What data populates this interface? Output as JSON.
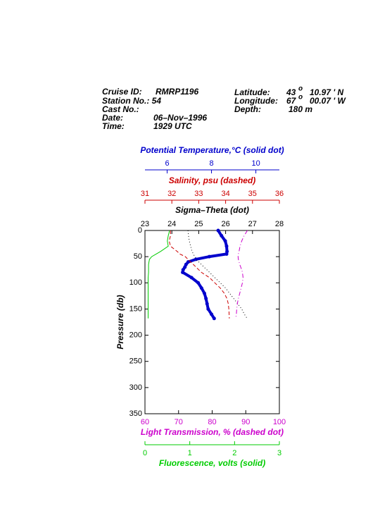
{
  "header": {
    "cruise_label": "Cruise ID:",
    "cruise": "RMRP1196",
    "station": "Station No.: 54",
    "cast": "Cast No.:",
    "date_label": "Date:",
    "date": "06–Nov–1996",
    "time_label": "Time:",
    "time": "1929 UTC",
    "lat_label": "Latitude:",
    "lat_deg": "43",
    "lat_min": "10.97 ' N",
    "lon_label": "Longitude:",
    "lon_deg": "67",
    "lon_min": "00.07 ' W",
    "degree": "o",
    "depth_label": "Depth:",
    "depth": "180 m"
  },
  "chart_data": {
    "type": "line",
    "ylabel": "Pressure (db)",
    "ylim": [
      0,
      350
    ],
    "yticks": [
      0,
      50,
      100,
      150,
      200,
      250,
      300,
      350
    ],
    "y_inverted": true,
    "pressure": [
      0,
      10,
      20,
      30,
      40,
      45,
      50,
      55,
      60,
      65,
      70,
      75,
      80,
      90,
      100,
      110,
      120,
      130,
      140,
      150,
      160,
      168
    ],
    "series": [
      {
        "name": "Potential Temperature,°C (solid dot)",
        "color": "#0000cc",
        "style": "solid-dot",
        "xlim": [
          5,
          11.06
        ],
        "xticks": [
          6,
          8,
          10
        ],
        "values": [
          8.3,
          8.45,
          8.62,
          8.68,
          8.7,
          8.68,
          7.9,
          7.3,
          6.95,
          6.85,
          6.8,
          6.72,
          6.7,
          7.1,
          7.4,
          7.55,
          7.68,
          7.75,
          7.8,
          7.85,
          8.0,
          8.12
        ]
      },
      {
        "name": "Salinity, psu  (dashed)",
        "color": "#cc0000",
        "style": "dashed",
        "xlim": [
          31,
          36
        ],
        "xticks": [
          31,
          32,
          33,
          34,
          35,
          36
        ],
        "values": [
          31.95,
          31.95,
          31.9,
          31.95,
          32.2,
          32.3,
          32.5,
          32.6,
          32.7,
          32.8,
          32.9,
          33.0,
          33.1,
          33.4,
          33.6,
          33.8,
          33.95,
          34.05,
          34.1,
          34.12,
          34.13,
          34.14
        ]
      },
      {
        "name": "Sigma–Theta (dot)",
        "color": "#000000",
        "style": "dot",
        "xlim": [
          23,
          28
        ],
        "xticks": [
          23,
          24,
          25,
          26,
          27,
          28
        ],
        "values": [
          24.6,
          24.62,
          24.65,
          24.7,
          24.75,
          24.8,
          24.85,
          24.9,
          25.0,
          25.1,
          25.2,
          25.3,
          25.4,
          25.6,
          25.8,
          26.0,
          26.15,
          26.3,
          26.45,
          26.6,
          26.7,
          26.8
        ]
      },
      {
        "name": "Light Transmission, % (dashed dot)",
        "color": "#cc00cc",
        "style": "dashdot",
        "xlim": [
          60,
          100
        ],
        "xticks": [
          60,
          70,
          80,
          90,
          100
        ],
        "values": [
          90.5,
          89.5,
          88.8,
          88.3,
          88.0,
          87.8,
          87.7,
          87.8,
          88.0,
          88.2,
          88.5,
          88.8,
          89.0,
          89.2,
          89.0,
          88.6,
          88.2,
          87.8,
          87.5,
          87.3,
          87.2,
          87.0
        ]
      },
      {
        "name": "Fluorescence, volts (solid)",
        "color": "#00cc00",
        "style": "solid",
        "xlim": [
          0,
          3
        ],
        "xticks": [
          0,
          1,
          2,
          3
        ],
        "values": [
          0.55,
          0.52,
          0.5,
          0.52,
          0.35,
          0.25,
          0.15,
          0.1,
          0.09,
          0.08,
          0.08,
          0.08,
          0.08,
          0.07,
          0.07,
          0.07,
          0.07,
          0.07,
          0.07,
          0.07,
          0.07,
          0.07
        ]
      }
    ]
  }
}
